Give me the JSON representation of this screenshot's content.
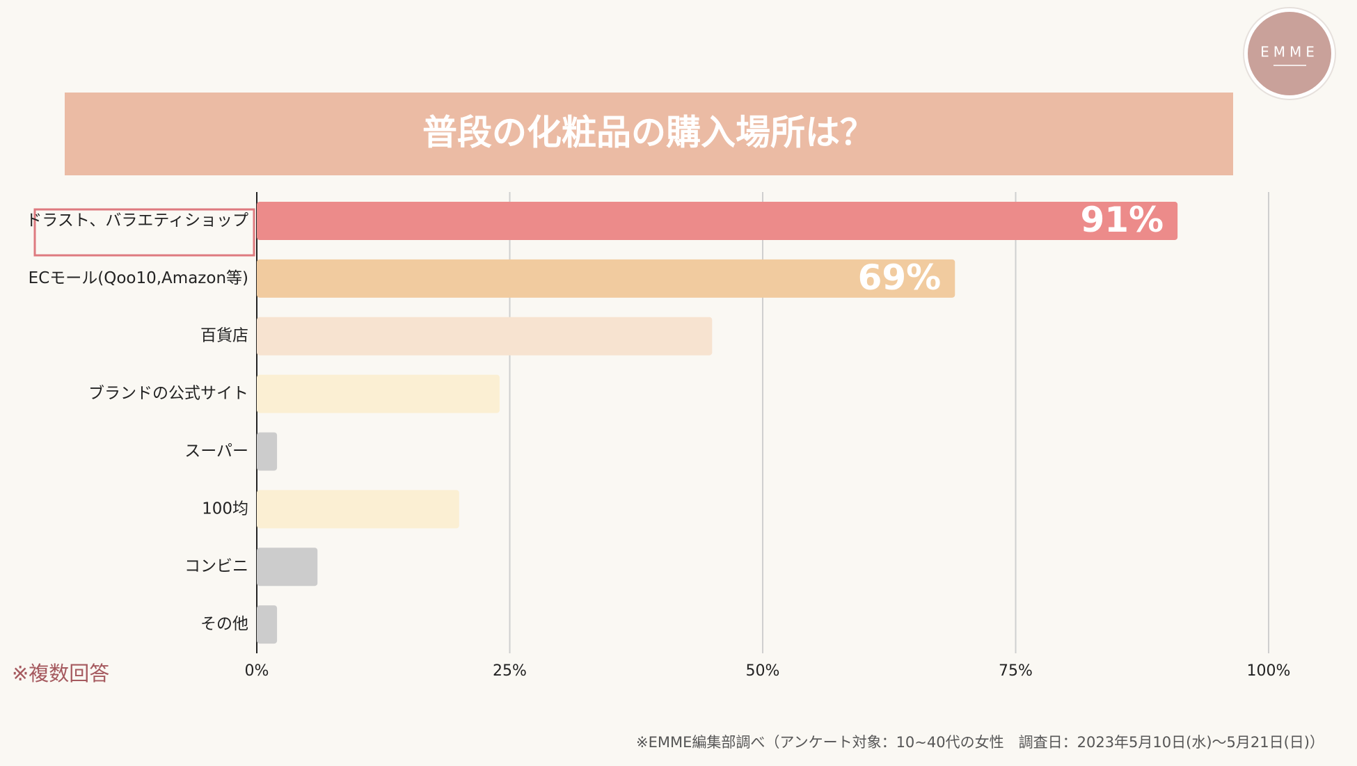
{
  "logo": "EMME",
  "note": "※複数回答",
  "source": "※EMME編集部調べ（アンケート対象：10~40代の女性　調査日：2023年5月10日(水)〜5月21日(日)）",
  "chart_data": {
    "type": "bar",
    "orientation": "horizontal",
    "title": "普段の化粧品の購入場所は？",
    "categories": [
      "ドラスト、バラエティショップ",
      "ECモール(Qoo10,Amazon等)",
      "百貨店",
      "ブランドの公式サイト",
      "スーパー",
      "100均",
      "コンビニ",
      "その他"
    ],
    "values": [
      91,
      69,
      45,
      24,
      2,
      20,
      6,
      2
    ],
    "value_labels": [
      "91%",
      "69%",
      null,
      null,
      null,
      null,
      null,
      null
    ],
    "colors": [
      "#ec8b8a",
      "#f1cb9f",
      "#f7e3d0",
      "#fbefd3",
      "#cccccc",
      "#fbefd3",
      "#cccccc",
      "#cccccc"
    ],
    "xlim": [
      0,
      100
    ],
    "xticks": [
      {
        "value": 0,
        "label": "0%"
      },
      {
        "value": 25,
        "label": "25%"
      },
      {
        "value": 50,
        "label": "50%"
      },
      {
        "value": 75,
        "label": "75%"
      },
      {
        "value": 100,
        "label": "100%"
      }
    ],
    "grid": true
  }
}
